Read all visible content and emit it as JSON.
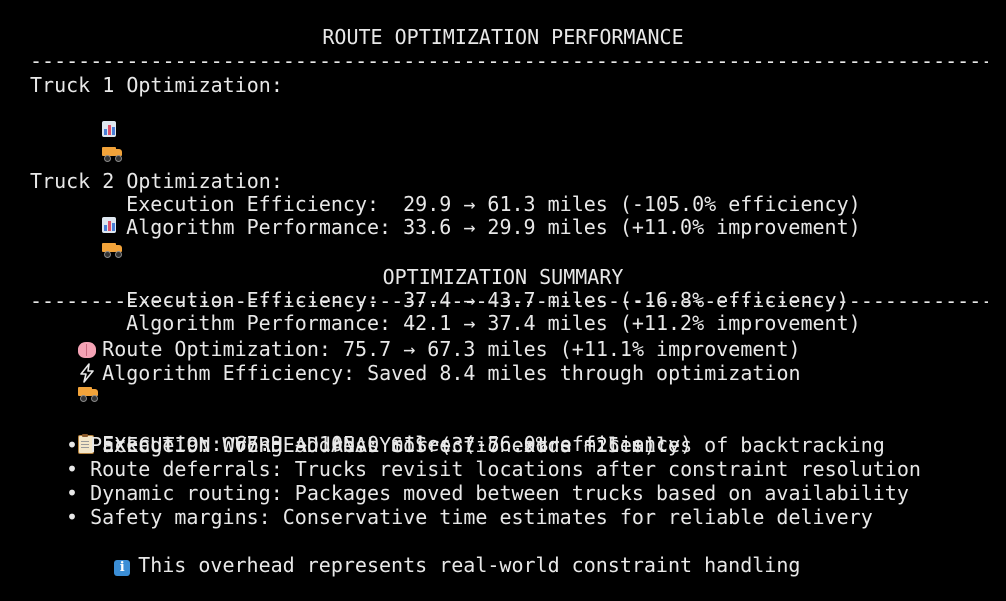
{
  "terminal": {
    "title": "ROUTE OPTIMIZATION PERFORMANCE",
    "divider": "--------------------------------------------------------------------------------",
    "trucks": [
      {
        "header": "Truck 1 Optimization:",
        "algorithm": "Algorithm Performance: 33.6 → 29.9 miles (+11.0% improvement)",
        "execution": "Execution Efficiency:  29.9 → 61.3 miles (-105.0% efficiency)"
      },
      {
        "header": "Truck 2 Optimization:",
        "algorithm": "Algorithm Performance: 42.1 → 37.4 miles (+11.2% improvement)",
        "execution": "Execution Efficiency:  37.4 → 43.7 miles (-16.8% efficiency)"
      }
    ],
    "summary": {
      "title": "OPTIMIZATION SUMMARY",
      "route": "Route Optimization: 75.7 → 67.3 miles (+11.1% improvement)",
      "algorithm": "Algorithm Efficiency: Saved 8.4 miles through optimization",
      "execution": "Execution: 67.3 → 105.0 miles (-56.0% efficiency)"
    },
    "overhead": {
      "title": "EXECUTION OVERHEAD ANALYSIS (37.7 extra miles):",
      "bullets": [
        "• Package 9: Wrong address correction adds ~25 miles of backtracking",
        "• Route deferrals: Trucks revisit locations after constraint resolution",
        "• Dynamic routing: Packages moved between trucks based on availability",
        "• Safety margins: Conservative time estimates for reliable delivery"
      ],
      "note": "This overhead represents real-world constraint handling"
    },
    "icons": {
      "algorithm": "bar-chart-icon",
      "execution": "truck-icon",
      "route": "brain-icon",
      "efficiency": "lightning-bolt-icon",
      "overhead": "clipboard-icon",
      "note": "info-icon"
    },
    "colors": {
      "background": "#000000",
      "text": "#e8e8e8"
    }
  }
}
